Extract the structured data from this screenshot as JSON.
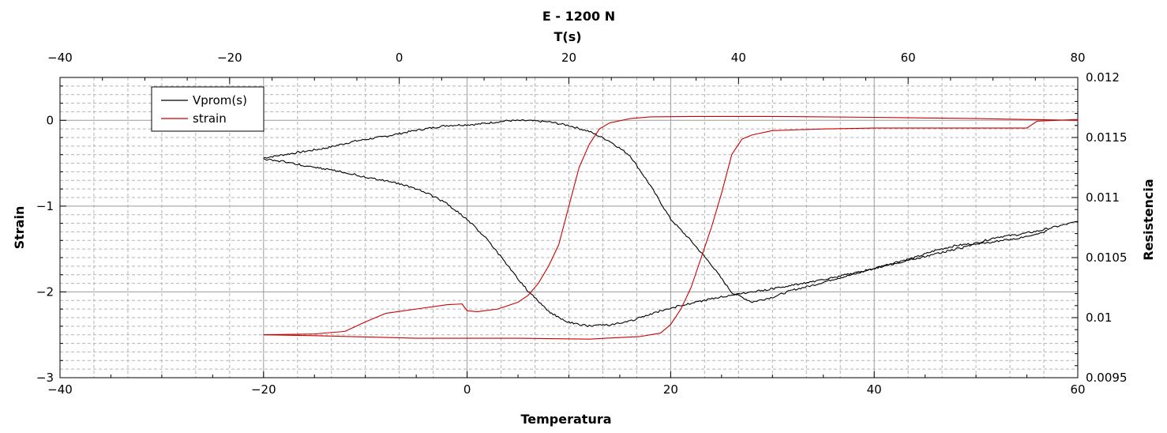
{
  "chart_data": {
    "type": "line",
    "title": "E  -  1200 N",
    "x_bottom": {
      "label": "Temperatura",
      "range": [
        -40,
        60
      ],
      "ticks": [
        -40,
        -20,
        0,
        20,
        40,
        60
      ],
      "tick_labels": [
        "−40",
        "−20",
        "0",
        "20",
        "40",
        "60"
      ]
    },
    "x_top": {
      "label": "T(s)",
      "range": [
        -40,
        80
      ],
      "ticks": [
        -40,
        -20,
        0,
        20,
        40,
        60,
        80
      ],
      "tick_labels": [
        "−40",
        "−20",
        "0",
        "20",
        "40",
        "60",
        "80"
      ]
    },
    "y_left": {
      "label": "Strain",
      "range": [
        -3,
        0.5
      ],
      "ticks": [
        -3,
        -2,
        -1,
        0
      ],
      "tick_labels": [
        "−3",
        "−2",
        "−1",
        "0"
      ]
    },
    "y_right": {
      "label": "Resistencia",
      "range": [
        0.0095,
        0.012
      ],
      "ticks": [
        0.0095,
        0.01,
        0.0105,
        0.011,
        0.0115,
        0.012
      ],
      "tick_labels": [
        "0.0095",
        "0.01",
        "0.0105",
        "0.011",
        "0.0115",
        "0.012"
      ]
    },
    "grid": true,
    "legend": {
      "placement": "top-left",
      "entries": [
        "Vprom(s)",
        "strain"
      ]
    },
    "series": [
      {
        "name": "Vprom(s)",
        "color": "#000000",
        "axes": "temperatura-resistencia",
        "heating": [
          [
            -20,
            0.01133
          ],
          [
            -17,
            0.01137
          ],
          [
            -14,
            0.01141
          ],
          [
            -11,
            0.01147
          ],
          [
            -8,
            0.01151
          ],
          [
            -5,
            0.01156
          ],
          [
            -2,
            0.0116
          ],
          [
            1,
            0.01161
          ],
          [
            4,
            0.01164
          ],
          [
            6,
            0.01164
          ],
          [
            8,
            0.01163
          ],
          [
            10,
            0.0116
          ],
          [
            12,
            0.01155
          ],
          [
            14,
            0.01147
          ],
          [
            16,
            0.01135
          ],
          [
            18,
            0.0111
          ],
          [
            20,
            0.01082
          ],
          [
            22,
            0.01064
          ],
          [
            24,
            0.01044
          ],
          [
            26,
            0.01021
          ],
          [
            28,
            0.01013
          ],
          [
            30,
            0.01017
          ],
          [
            32,
            0.01023
          ],
          [
            34,
            0.01027
          ],
          [
            36,
            0.01032
          ],
          [
            38,
            0.01036
          ],
          [
            40,
            0.01041
          ],
          [
            42,
            0.01046
          ],
          [
            44,
            0.0105
          ],
          [
            46,
            0.01056
          ],
          [
            48,
            0.0106
          ],
          [
            50,
            0.01062
          ],
          [
            52,
            0.01067
          ],
          [
            54,
            0.01069
          ],
          [
            56,
            0.01072
          ],
          [
            58,
            0.01076
          ],
          [
            60,
            0.0108
          ]
        ],
        "cooling": [
          [
            57,
            0.01072
          ],
          [
            54,
            0.01066
          ],
          [
            50,
            0.01061
          ],
          [
            46,
            0.01053
          ],
          [
            42,
            0.01045
          ],
          [
            38,
            0.01037
          ],
          [
            34,
            0.0103
          ],
          [
            30,
            0.01024
          ],
          [
            26,
            0.01019
          ],
          [
            22,
            0.01012
          ],
          [
            20,
            0.01008
          ],
          [
            18,
            0.01003
          ],
          [
            16,
            0.00997
          ],
          [
            14,
            0.00994
          ],
          [
            12,
            0.00993
          ],
          [
            10,
            0.00996
          ],
          [
            8,
            0.01005
          ],
          [
            6,
            0.01022
          ],
          [
            4,
            0.01043
          ],
          [
            2,
            0.01065
          ],
          [
            0,
            0.01082
          ],
          [
            -2,
            0.01095
          ],
          [
            -4,
            0.01104
          ],
          [
            -6,
            0.0111
          ],
          [
            -8,
            0.01114
          ],
          [
            -10,
            0.01117
          ],
          [
            -12,
            0.01121
          ],
          [
            -15,
            0.01125
          ],
          [
            -18,
            0.0113
          ],
          [
            -20,
            0.01132
          ]
        ]
      },
      {
        "name": "strain",
        "color": "#cc0000",
        "axes": "temperatura-strain",
        "heating": [
          [
            -20,
            -2.5
          ],
          [
            -15,
            -2.49
          ],
          [
            -12,
            -2.46
          ],
          [
            -10,
            -2.35
          ],
          [
            -8,
            -2.25
          ],
          [
            -5,
            -2.2
          ],
          [
            -2,
            -2.15
          ],
          [
            -0.5,
            -2.14
          ],
          [
            0,
            -2.22
          ],
          [
            1,
            -2.23
          ],
          [
            3,
            -2.2
          ],
          [
            5,
            -2.12
          ],
          [
            6,
            -2.04
          ],
          [
            7,
            -1.9
          ],
          [
            8,
            -1.7
          ],
          [
            9,
            -1.45
          ],
          [
            10,
            -1.0
          ],
          [
            11,
            -0.55
          ],
          [
            12,
            -0.28
          ],
          [
            13,
            -0.1
          ],
          [
            14,
            -0.03
          ],
          [
            16,
            0.02
          ],
          [
            18,
            0.04
          ],
          [
            22,
            0.045
          ],
          [
            30,
            0.045
          ],
          [
            40,
            0.035
          ],
          [
            50,
            0.02
          ],
          [
            60,
            0.0
          ]
        ],
        "cooling": [
          [
            60,
            0.01
          ],
          [
            56,
            -0.01
          ],
          [
            55,
            -0.09
          ],
          [
            50,
            -0.09
          ],
          [
            40,
            -0.09
          ],
          [
            35,
            -0.1
          ],
          [
            30,
            -0.12
          ],
          [
            28,
            -0.17
          ],
          [
            27,
            -0.22
          ],
          [
            26,
            -0.4
          ],
          [
            25,
            -0.85
          ],
          [
            24,
            -1.25
          ],
          [
            23,
            -1.6
          ],
          [
            22,
            -1.95
          ],
          [
            21,
            -2.2
          ],
          [
            20,
            -2.38
          ],
          [
            19,
            -2.48
          ],
          [
            17,
            -2.52
          ],
          [
            12,
            -2.55
          ],
          [
            5,
            -2.54
          ],
          [
            -5,
            -2.54
          ],
          [
            -15,
            -2.51
          ],
          [
            -20,
            -2.5
          ]
        ]
      }
    ]
  }
}
